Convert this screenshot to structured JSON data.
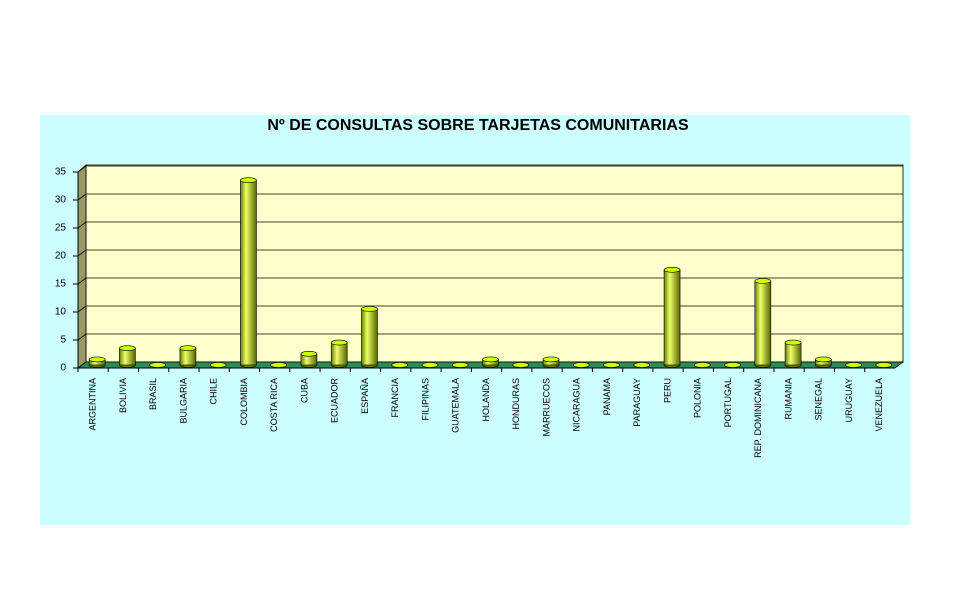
{
  "chart_data": {
    "type": "bar3d",
    "title": "Nº DE CONSULTAS SOBRE TARJETAS COMUNITARIAS",
    "categories": [
      "ARGENTINA",
      "BOLIVIA",
      "BRASIL",
      "BULGARIA",
      "CHILE",
      "COLOMBIA",
      "COSTA RICA",
      "CUBA",
      "ECUADOR",
      "ESPAÑA",
      "FRANCIA",
      "FILIPINAS",
      "GUATEMALA",
      "HOLANDA",
      "HONDURAS",
      "MARRUECOS",
      "NICARAGUA",
      "PANAMA",
      "PARAGUAY",
      "PERU",
      "POLONIA",
      "PORTUGAL",
      "REP. DOMINICANA",
      "RUMANIA",
      "SENEGAL",
      "URUGUAY",
      "VENEZUELA"
    ],
    "values": [
      1,
      3,
      0,
      3,
      0,
      33,
      0,
      2,
      4,
      10,
      0,
      0,
      0,
      1,
      0,
      1,
      0,
      0,
      0,
      17,
      0,
      0,
      15,
      4,
      1,
      0,
      0
    ],
    "color": "#ccff00",
    "ylim": [
      0,
      35
    ],
    "yticks": [
      0,
      5,
      10,
      15,
      20,
      25,
      30,
      35
    ],
    "grid": true
  }
}
